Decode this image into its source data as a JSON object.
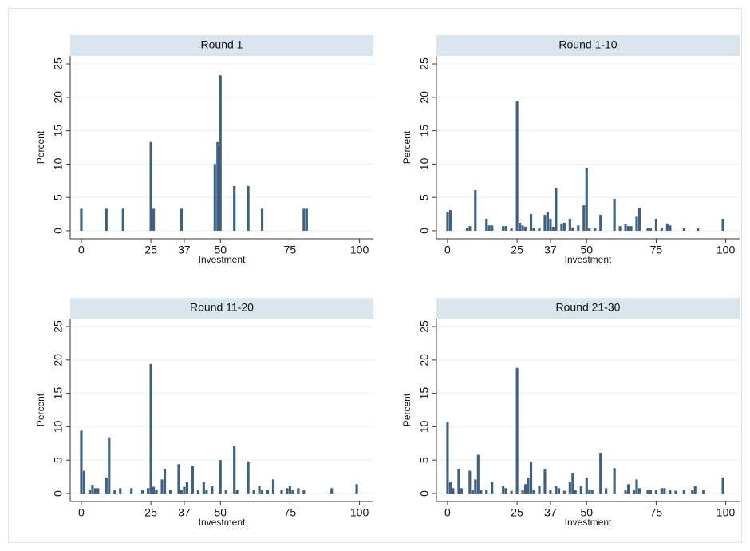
{
  "chart_data": [
    {
      "type": "bar",
      "title": "Round 1",
      "xlabel": "Investment",
      "ylabel": "Percent",
      "color": "#3d6182",
      "grid": true,
      "xlim": [
        -4,
        105
      ],
      "ylim": [
        -1.2,
        26.2
      ],
      "xticks": [
        0,
        25,
        37,
        50,
        75,
        100
      ],
      "yticks": [
        0,
        5,
        10,
        15,
        20,
        25
      ],
      "x": [
        0,
        9,
        15,
        25,
        26,
        36,
        48,
        49,
        50,
        55,
        60,
        65,
        80,
        81
      ],
      "values": [
        3.3,
        3.3,
        3.3,
        13.3,
        3.3,
        3.3,
        10,
        13.3,
        23.3,
        6.7,
        6.7,
        3.3,
        3.3,
        3.3
      ]
    },
    {
      "type": "bar",
      "title": "Round 1-10",
      "xlabel": "Investment",
      "ylabel": "Percent",
      "color": "#3d6182",
      "grid": true,
      "xlim": [
        -4,
        105
      ],
      "ylim": [
        -1.2,
        26.2
      ],
      "xticks": [
        0,
        25,
        37,
        50,
        75,
        100
      ],
      "yticks": [
        0,
        5,
        10,
        15,
        20,
        25
      ],
      "x": [
        0,
        1,
        7,
        8,
        10,
        14,
        15,
        16,
        20,
        21,
        23,
        25,
        26,
        27,
        28,
        30,
        31,
        33,
        35,
        36,
        37,
        38,
        39,
        41,
        42,
        44,
        45,
        47,
        49,
        50,
        51,
        53,
        55,
        60,
        62,
        64,
        65,
        66,
        68,
        69,
        72,
        73,
        75,
        77,
        79,
        80,
        85,
        90,
        99
      ],
      "values": [
        2.8,
        3.1,
        0.4,
        0.7,
        6.1,
        1.8,
        0.8,
        0.8,
        0.7,
        0.7,
        0.4,
        19.4,
        1.2,
        0.8,
        0.6,
        2.5,
        0.4,
        0.4,
        2.4,
        2.8,
        1.8,
        0.6,
        6.4,
        1.1,
        1.2,
        1.8,
        0.5,
        0.8,
        3.8,
        9.4,
        0.4,
        0.4,
        2.4,
        4.8,
        0.7,
        1.0,
        0.7,
        0.7,
        2.1,
        3.4,
        0.4,
        0.4,
        1.8,
        0.4,
        1.1,
        0.8,
        0.4,
        0.4,
        1.8
      ]
    },
    {
      "type": "bar",
      "title": "Round 11-20",
      "xlabel": "Investment",
      "ylabel": "Percent",
      "color": "#3d6182",
      "grid": true,
      "xlim": [
        -4,
        105
      ],
      "ylim": [
        -1.2,
        26.2
      ],
      "xticks": [
        0,
        25,
        37,
        50,
        75,
        100
      ],
      "yticks": [
        0,
        5,
        10,
        15,
        20,
        25
      ],
      "x": [
        0,
        1,
        3,
        4,
        5,
        6,
        9,
        10,
        12,
        14,
        18,
        22,
        24,
        25,
        26,
        27,
        29,
        30,
        32,
        35,
        36,
        37,
        38,
        40,
        42,
        44,
        45,
        47,
        50,
        52,
        55,
        56,
        60,
        62,
        64,
        65,
        67,
        69,
        72,
        74,
        75,
        76,
        78,
        80,
        90,
        99
      ],
      "values": [
        9.4,
        3.4,
        0.5,
        1.3,
        0.8,
        0.8,
        2.4,
        8.4,
        0.5,
        0.8,
        0.8,
        0.5,
        0.8,
        19.4,
        1.0,
        0.5,
        2.1,
        3.7,
        0.5,
        4.4,
        0.5,
        1.0,
        1.7,
        4.1,
        0.5,
        1.7,
        0.5,
        1.1,
        5.0,
        0.5,
        7.1,
        0.5,
        4.8,
        0.5,
        1.1,
        0.5,
        0.5,
        2.1,
        0.5,
        0.8,
        1.1,
        0.5,
        0.8,
        0.5,
        0.8,
        1.4
      ]
    },
    {
      "type": "bar",
      "title": "Round 21-30",
      "xlabel": "Investment",
      "ylabel": "Percent",
      "color": "#3d6182",
      "grid": true,
      "xlim": [
        -4,
        105
      ],
      "ylim": [
        -1.2,
        26.2
      ],
      "xticks": [
        0,
        25,
        37,
        50,
        75,
        100
      ],
      "yticks": [
        0,
        5,
        10,
        15,
        20,
        25
      ],
      "x": [
        0,
        1,
        2,
        4,
        5,
        8,
        9,
        10,
        11,
        12,
        14,
        16,
        20,
        21,
        23,
        25,
        27,
        28,
        29,
        30,
        31,
        33,
        35,
        37,
        39,
        40,
        42,
        44,
        45,
        46,
        48,
        50,
        51,
        52,
        55,
        57,
        60,
        64,
        65,
        67,
        68,
        69,
        72,
        73,
        75,
        77,
        78,
        80,
        82,
        85,
        88,
        89,
        92,
        99
      ],
      "values": [
        10.7,
        1.8,
        0.8,
        3.7,
        0.8,
        3.4,
        0.5,
        2.1,
        5.8,
        0.5,
        0.5,
        1.7,
        1.1,
        0.8,
        0.4,
        18.8,
        0.5,
        1.4,
        2.4,
        4.8,
        0.5,
        1.1,
        3.7,
        0.5,
        1.1,
        0.8,
        0.4,
        1.7,
        3.1,
        0.5,
        1.1,
        2.4,
        0.5,
        0.5,
        6.1,
        0.8,
        3.8,
        0.5,
        1.4,
        0.5,
        2.1,
        0.8,
        0.5,
        0.5,
        0.5,
        0.8,
        0.8,
        0.5,
        0.4,
        0.5,
        0.5,
        1.1,
        0.5,
        2.4
      ]
    }
  ]
}
